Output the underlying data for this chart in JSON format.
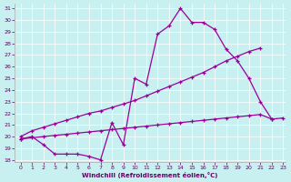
{
  "xlabel": "Windchill (Refroidissement éolien,°C)",
  "background_color": "#c8f0f0",
  "line_color": "#990099",
  "xlim": [
    -0.5,
    23.2
  ],
  "ylim": [
    17.8,
    31.4
  ],
  "xticks": [
    0,
    1,
    2,
    3,
    4,
    5,
    6,
    7,
    8,
    9,
    10,
    11,
    12,
    13,
    14,
    15,
    16,
    17,
    18,
    19,
    20,
    21,
    22,
    23
  ],
  "yticks": [
    18,
    19,
    20,
    21,
    22,
    23,
    24,
    25,
    26,
    27,
    28,
    29,
    30,
    31
  ],
  "line1_x": [
    0,
    1,
    2,
    3,
    4,
    5,
    6,
    7,
    8,
    9,
    10,
    11,
    12,
    13,
    14,
    15,
    16,
    17,
    18,
    19,
    20,
    21,
    22
  ],
  "line1_y": [
    19.8,
    20.0,
    19.3,
    18.5,
    18.5,
    18.5,
    18.3,
    18.0,
    21.2,
    19.3,
    25.0,
    24.5,
    28.8,
    29.5,
    31.0,
    29.8,
    29.8,
    29.2,
    27.5,
    26.5,
    25.0,
    23.0,
    21.5
  ],
  "line2_x": [
    0,
    1,
    2,
    3,
    4,
    5,
    6,
    7,
    8,
    9,
    10,
    11,
    12,
    13,
    14,
    15,
    16,
    17,
    18,
    19,
    20,
    21
  ],
  "line2_y": [
    20.0,
    20.5,
    20.8,
    21.1,
    21.4,
    21.7,
    22.0,
    22.2,
    22.5,
    22.8,
    23.1,
    23.5,
    23.9,
    24.3,
    24.7,
    25.1,
    25.5,
    26.0,
    26.5,
    26.9,
    27.3,
    27.6
  ],
  "line3_x": [
    0,
    1,
    2,
    3,
    4,
    5,
    6,
    7,
    8,
    9,
    10,
    11,
    12,
    13,
    14,
    15,
    16,
    17,
    18,
    19,
    20,
    21,
    22,
    23
  ],
  "line3_y": [
    19.8,
    19.9,
    20.0,
    20.1,
    20.2,
    20.3,
    20.4,
    20.5,
    20.6,
    20.7,
    20.8,
    20.9,
    21.0,
    21.1,
    21.2,
    21.3,
    21.4,
    21.5,
    21.6,
    21.7,
    21.8,
    21.9,
    21.5,
    21.6
  ]
}
